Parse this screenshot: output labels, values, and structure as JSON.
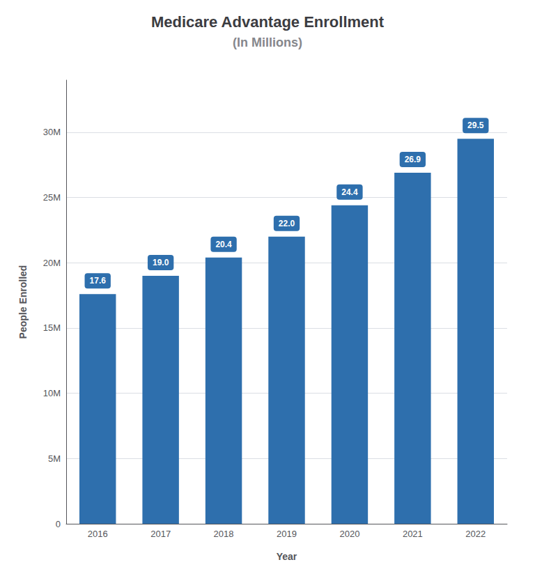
{
  "chart_data": {
    "type": "bar",
    "title": "Medicare Advantage Enrollment",
    "subtitle": "(In Millions)",
    "xlabel": "Year",
    "ylabel": "People Enrolled",
    "categories": [
      "2016",
      "2017",
      "2018",
      "2019",
      "2020",
      "2021",
      "2022"
    ],
    "values": [
      17.6,
      19.0,
      20.4,
      22.0,
      24.4,
      26.9,
      29.5
    ],
    "value_labels": [
      "17.6",
      "19.0",
      "20.4",
      "22.0",
      "24.4",
      "26.9",
      "29.5"
    ],
    "data_labels": true,
    "color": "#2e6fad",
    "ylim": [
      0,
      34
    ],
    "yticks": [
      0,
      {
        "value": 5,
        "label": "5M"
      },
      {
        "value": 10,
        "label": "10M"
      },
      {
        "value": 15,
        "label": "15M"
      },
      {
        "value": 20,
        "label": "20M"
      },
      {
        "value": 25,
        "label": "25M"
      },
      {
        "value": 30,
        "label": "30M"
      }
    ],
    "grid": true
  }
}
